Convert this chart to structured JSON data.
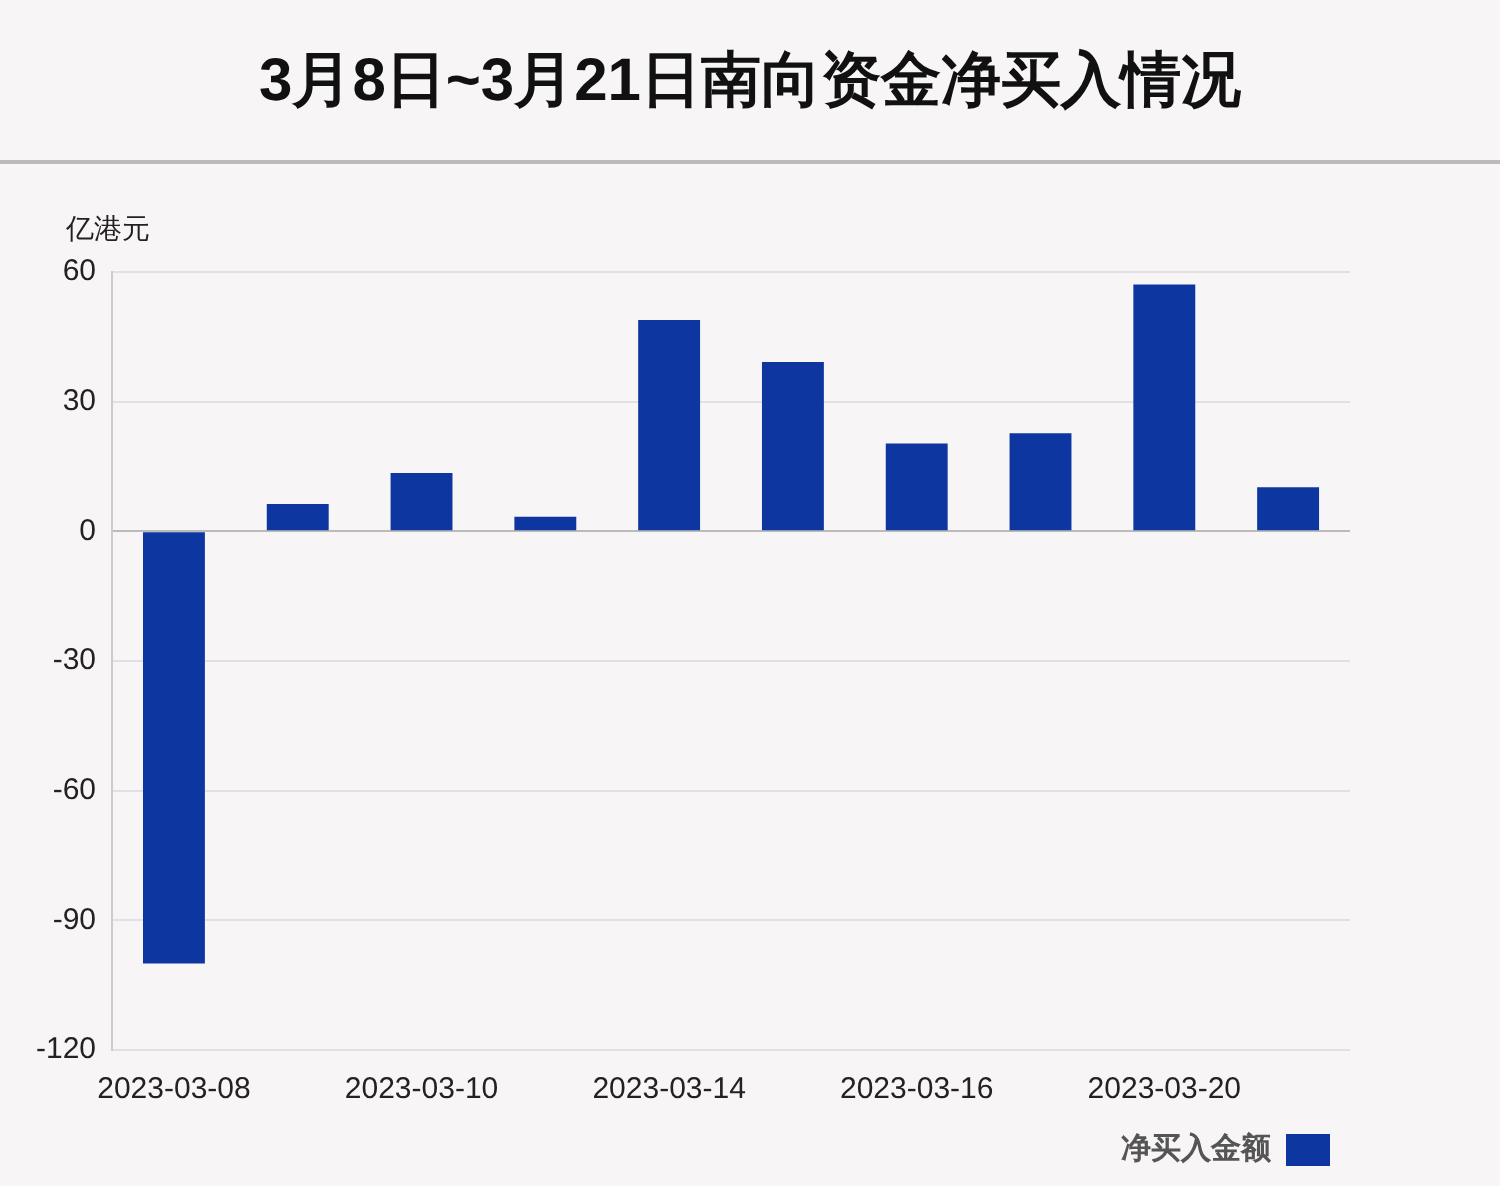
{
  "chart_data": {
    "type": "bar",
    "title": "3月8日~3月21日南向资金净买入情况",
    "ylabel": "亿港元",
    "categories": [
      "2023-03-08",
      null,
      "2023-03-10",
      null,
      "2023-03-14",
      null,
      "2023-03-16",
      null,
      "2023-03-20",
      null
    ],
    "series": [
      {
        "name": "净买入金额",
        "color": "#0d36a0",
        "values": [
          -100,
          6.3,
          13.5,
          3.4,
          48.9,
          39.2,
          20.3,
          22.7,
          57.1,
          10.2
        ]
      }
    ],
    "ylim": [
      -120,
      60
    ],
    "yticks": [
      -120,
      -90,
      -60,
      -30,
      0,
      30,
      60
    ],
    "grid": "y",
    "legend": "bottom right"
  }
}
